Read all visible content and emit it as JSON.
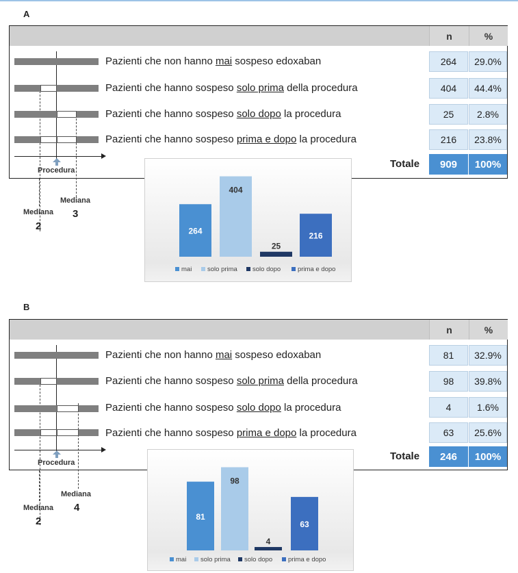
{
  "panels": [
    {
      "letter": "A",
      "header": {
        "n": "n",
        "pct": "%"
      },
      "rows": [
        {
          "pre": "Pazienti che non hanno ",
          "u": "mai",
          "post": " sospeso edoxaban",
          "n": "264",
          "pct": "29.0%"
        },
        {
          "pre": "Pazienti che hanno sospeso ",
          "u": "solo prima",
          "post": " della procedura",
          "n": "404",
          "pct": "44.4%"
        },
        {
          "pre": "Pazienti che hanno sospeso ",
          "u": "solo dopo",
          "post": " la procedura",
          "n": "25",
          "pct": "2.8%"
        },
        {
          "pre": "Pazienti che hanno sospeso ",
          "u": "prima e dopo",
          "post": " la procedura",
          "n": "216",
          "pct": "23.8%"
        }
      ],
      "total": {
        "label": "Totale",
        "n": "909",
        "pct": "100%"
      },
      "timeline": {
        "procedura": "Procedura",
        "median_left_label": "Mediana",
        "median_left_value": "2",
        "median_right_label": "Mediana",
        "median_right_value": "3"
      }
    },
    {
      "letter": "B",
      "header": {
        "n": "n",
        "pct": "%"
      },
      "rows": [
        {
          "pre": "Pazienti che non hanno ",
          "u": "mai",
          "post": " sospeso edoxaban",
          "n": "81",
          "pct": "32.9%"
        },
        {
          "pre": "Pazienti che hanno sospeso ",
          "u": "solo prima",
          "post": " della procedura",
          "n": "98",
          "pct": "39.8%"
        },
        {
          "pre": "Pazienti che hanno sospeso ",
          "u": "solo dopo",
          "post": " la procedura",
          "n": "4",
          "pct": "1.6%"
        },
        {
          "pre": "Pazienti che hanno sospeso ",
          "u": "prima e dopo",
          "post": " la procedura",
          "n": "63",
          "pct": "25.6%"
        }
      ],
      "total": {
        "label": "Totale",
        "n": "246",
        "pct": "100%"
      },
      "timeline": {
        "procedura": "Procedura",
        "median_left_label": "Mediana",
        "median_left_value": "2",
        "median_right_label": "Mediana",
        "median_right_value": "4"
      }
    }
  ],
  "chart_data": [
    {
      "type": "bar",
      "categories": [
        "mai",
        "solo prima",
        "solo dopo",
        "prima e dopo"
      ],
      "values": [
        264,
        404,
        25,
        216
      ],
      "data_labels": [
        "264",
        "404",
        "25",
        "216"
      ],
      "colors": [
        "#4a90d2",
        "#a9cbe9",
        "#1f3864",
        "#3c6fbf"
      ],
      "ylim": [
        0,
        430
      ],
      "legend_position": "bottom",
      "grid": false
    },
    {
      "type": "bar",
      "categories": [
        "mai",
        "solo prima",
        "solo dopo",
        "prima e dopo"
      ],
      "values": [
        81,
        98,
        4,
        63
      ],
      "data_labels": [
        "81",
        "98",
        "4",
        "63"
      ],
      "colors": [
        "#4a90d2",
        "#a9cbe9",
        "#1f3864",
        "#3c6fbf"
      ],
      "ylim": [
        0,
        100
      ],
      "legend_position": "bottom",
      "grid": false
    }
  ]
}
